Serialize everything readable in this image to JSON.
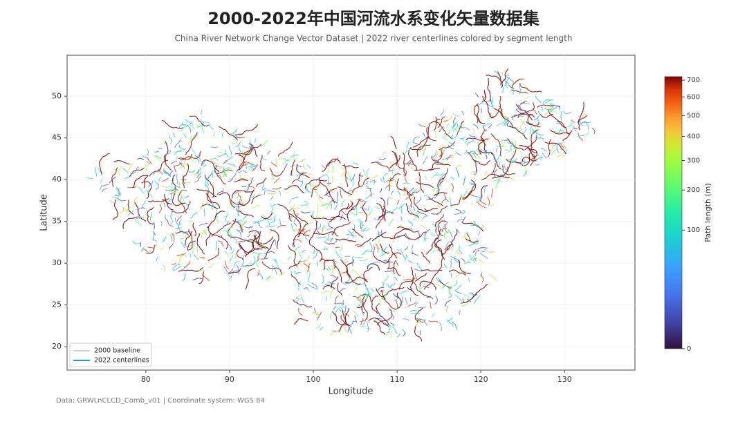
{
  "chart_data": {
    "type": "map",
    "title": "2000-2022年中国河流水系变化矢量数据集",
    "subtitle": "China River Network Change Vector Dataset | 2022 river centerlines colored by segment length",
    "x_label": "Longitude",
    "y_label": "Latitude",
    "xlim": [
      70.6,
      138.4
    ],
    "ylim": [
      17.2,
      54.9
    ],
    "xticks": [
      80,
      90,
      100,
      110,
      120,
      130
    ],
    "yticks": [
      20,
      25,
      30,
      35,
      40,
      45,
      50
    ],
    "grid": true,
    "legend": "lower left",
    "series": [
      {
        "name": "2000 baseline",
        "color": "#d0d0d0"
      },
      {
        "name": "2022 centerlines",
        "color": "#17a2b8"
      }
    ],
    "colorbar": {
      "label": "Path length (m)",
      "lim": [
        0,
        722
      ],
      "gamma": 0.42,
      "ticks": [
        0,
        100,
        200,
        300,
        400,
        500,
        600,
        700
      ]
    },
    "footnote": "Data: GRWLnCLCD_Comb_v01 | Coordinate system: WGS 84"
  }
}
